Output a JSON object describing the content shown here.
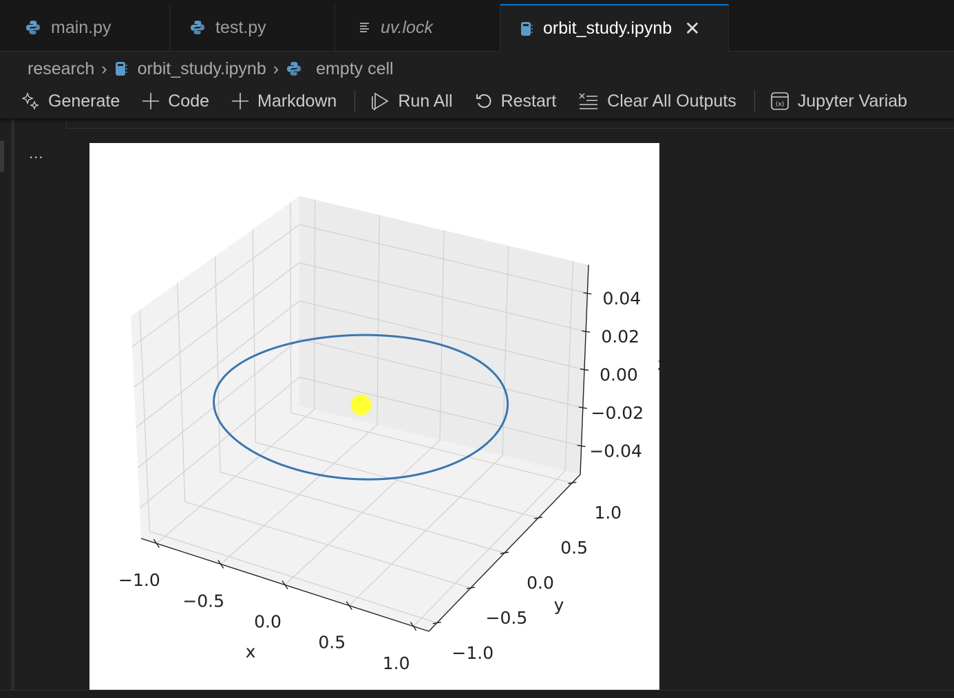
{
  "tabs": [
    {
      "label": "main.py",
      "icon": "python-icon",
      "italic": false,
      "active": false
    },
    {
      "label": "test.py",
      "icon": "python-icon",
      "italic": false,
      "active": false
    },
    {
      "label": "uv.lock",
      "icon": "lines-icon",
      "italic": true,
      "active": false
    },
    {
      "label": "orbit_study.ipynb",
      "icon": "notebook-icon",
      "italic": false,
      "active": true
    }
  ],
  "breadcrumb": {
    "items": [
      "research",
      "orbit_study.ipynb",
      "empty cell"
    ]
  },
  "toolbar": {
    "generate": "Generate",
    "code": "Code",
    "markdown": "Markdown",
    "run_all": "Run All",
    "restart": "Restart",
    "clear": "Clear All Outputs",
    "variables": "Jupyter Variab"
  },
  "output": {
    "more_label": "..."
  },
  "colors": {
    "accent": "#0078d4",
    "python": "#5b9bc7",
    "orbit": "#3a76b0",
    "sun": "#ffff33"
  },
  "chart_data": {
    "type": "line3d",
    "title": "",
    "xlabel": "x",
    "ylabel": "y",
    "zlabel": "z",
    "xlim": [
      -1.12,
      1.12
    ],
    "ylim": [
      -1.12,
      1.12
    ],
    "zlim": [
      -0.055,
      0.055
    ],
    "xticks": [
      "−1.0",
      "−0.5",
      "0.0",
      "0.5",
      "1.0"
    ],
    "yticks": [
      "−1.0",
      "−0.5",
      "0.0",
      "0.5",
      "1.0"
    ],
    "zticks": [
      "−0.04",
      "−0.02",
      "0.00",
      "0.02",
      "0.04"
    ],
    "xtick_values": [
      -1,
      -0.5,
      0,
      0.5,
      1
    ],
    "ytick_values": [
      -1,
      -0.5,
      0,
      0.5,
      1
    ],
    "ztick_values": [
      -0.04,
      -0.02,
      0,
      0.02,
      0.04
    ],
    "grid": true,
    "series": [
      {
        "kind": "orbit",
        "description_shape": "circle",
        "radius": 1.0,
        "z": 0,
        "color": "#3a76b0"
      },
      {
        "kind": "point",
        "x": 0,
        "y": 0,
        "z": 0,
        "color": "#ffff33"
      }
    ]
  }
}
